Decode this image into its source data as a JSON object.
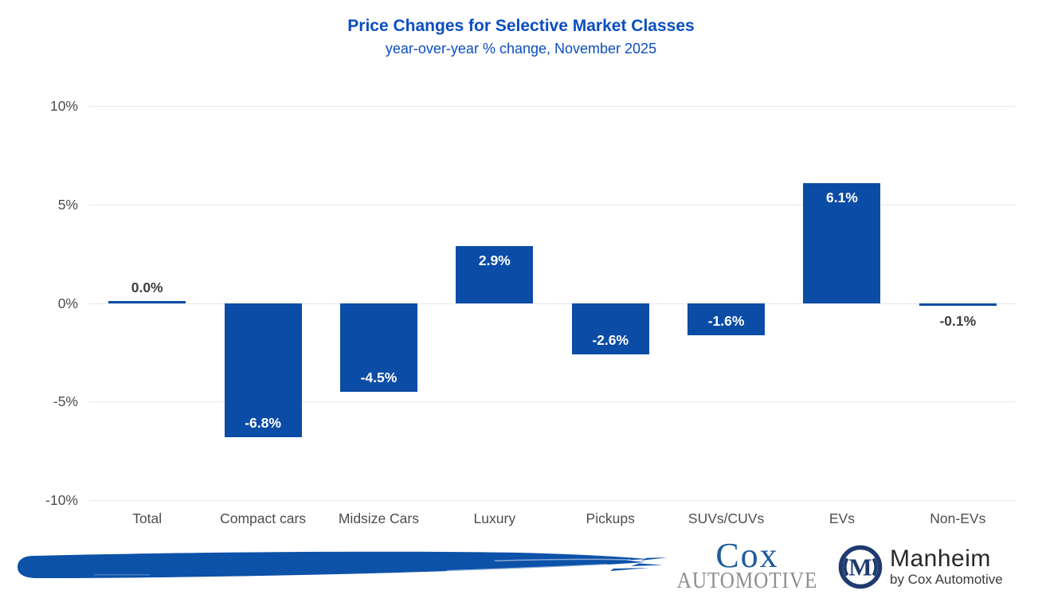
{
  "header": {
    "title": "Price Changes for Selective Market Classes",
    "subtitle": "year-over-year % change, November 2025"
  },
  "chart_data": {
    "type": "bar",
    "title": "Price Changes for Selective Market Classes",
    "subtitle": "year-over-year % change, November 2025",
    "categories": [
      "Total",
      "Compact cars",
      "Midsize Cars",
      "Luxury",
      "Pickups",
      "SUVs/CUVs",
      "EVs",
      "Non-EVs"
    ],
    "values": [
      0.0,
      -6.8,
      -4.5,
      2.9,
      -2.6,
      -1.6,
      6.1,
      -0.1
    ],
    "value_labels": [
      "0.0%",
      "-6.8%",
      "-4.5%",
      "2.9%",
      "-2.6%",
      "-1.6%",
      "6.1%",
      "-0.1%"
    ],
    "label_placement": [
      "above",
      "inside-bottom",
      "inside-bottom",
      "inside-top",
      "inside-bottom",
      "inside-bottom",
      "inside-top",
      "below"
    ],
    "ylim": [
      -10,
      10
    ],
    "yticks": [
      {
        "value": 10,
        "label": "10%"
      },
      {
        "value": 5,
        "label": "5%"
      },
      {
        "value": 0,
        "label": "0%"
      },
      {
        "value": -5,
        "label": "-5%"
      },
      {
        "value": -10,
        "label": "-10%"
      }
    ],
    "grid": true,
    "legend": false,
    "xlabel": "",
    "ylabel": ""
  },
  "colors": {
    "title": "#0b4dc2",
    "bar": "#0b4ca6",
    "grid": "#e7e7e7",
    "axis_text": "#4d4d4d",
    "label_dark": "#3f3f3f",
    "label_light": "#ffffff",
    "cox_blue": "#205a9e",
    "cox_gray": "#8e8e8e",
    "manheim_navy": "#1e3a6e",
    "manheim_text": "#282828",
    "manheim_sub": "#3a3a3a",
    "brush_blue": "#0d52a9",
    "brush_light": "#7fa8d9"
  },
  "footer": {
    "cox_logo": {
      "name": "Cox",
      "word": "AUTOMOTIVE"
    },
    "manheim_logo": {
      "monogram": "M",
      "name": "Manheim",
      "tagline": "by Cox Automotive"
    }
  }
}
